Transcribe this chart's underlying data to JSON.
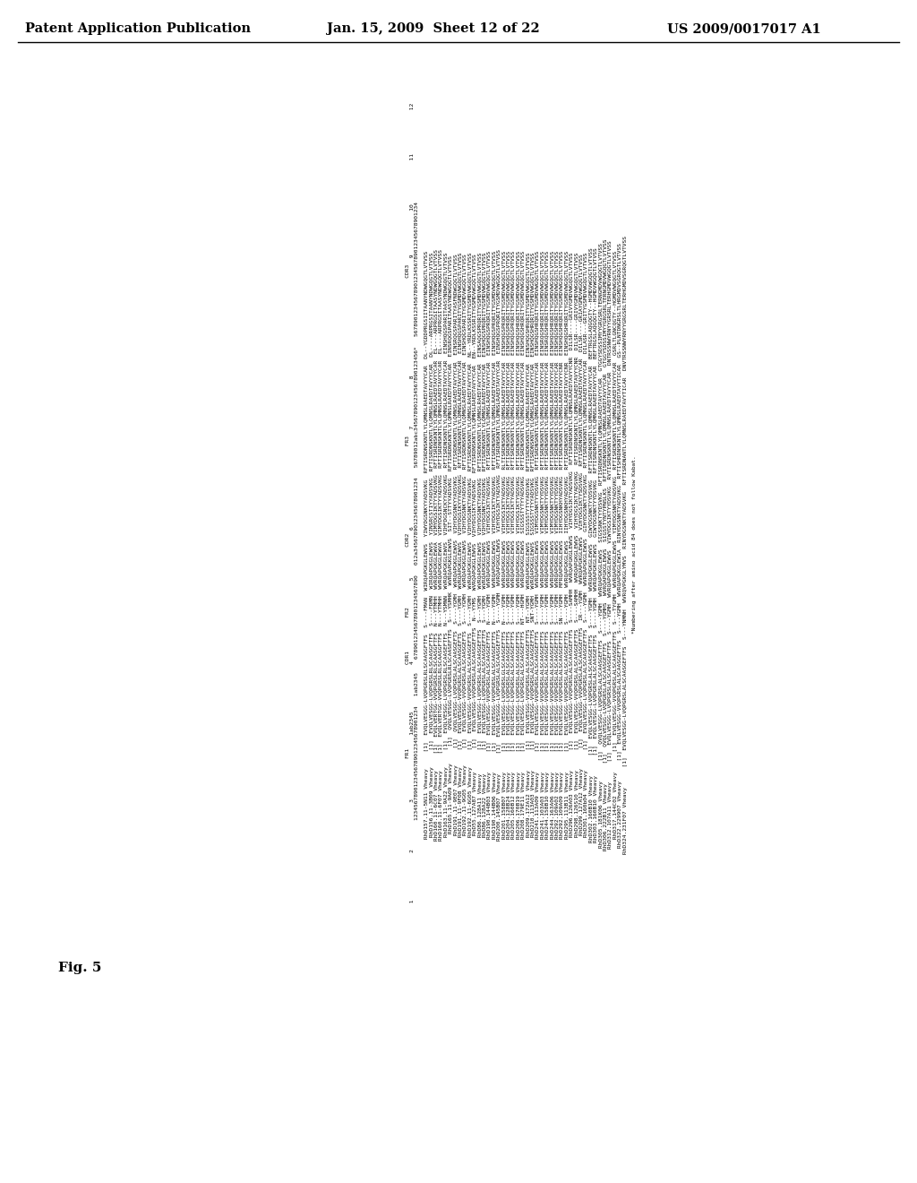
{
  "header_left": "Patent Application Publication",
  "header_center": "Jan. 15, 2009  Sheet 12 of 22",
  "header_right": "US 2009/0017017 A1",
  "figure_label": "Fig. 5",
  "background_color": "#ffffff",
  "text_color": "#000000",
  "footnote": "*Numbering after amino acid 84 does not follow Kabat.",
  "region_labels": [
    "FR1",
    "CDR1",
    "FR2",
    "CDR2",
    "FR3",
    "CDR3"
  ],
  "seq_names": [
    "RhD157.11-5N11 Vheavy",
    "RhD156.11-3B09 Vheavy",
    "RhD160.11-6C07 Vheavy",
    "RhD160.11-6F07 Vheavy",
    "RhD163.11-9A22 Vheavy",
    "RhD165.11-9A09 Vheavy",
    "RhD191.11-9E07 Vheavy",
    "RhD191.11-9F08 Vheavy",
    "RhD192.11-9G05 Vheavy",
    "RhD192.11-6G05 Vheavy",
    "RhD55.127A87 Vheavy",
    "RhD86.128A11 Vheavy",
    "RhD86.128A22 Vheavy",
    "RhD190.144B03 Vheavy",
    "RhD190.144B06 Vheavy",
    "RhD200.145B07 Vheavy",
    "RhD201.158B07 Vheavy",
    "RhD204.128B24 Vheavy",
    "RhD205.160B12 Vheavy",
    "RhD206.170B19 Vheavy",
    "RhD208.179E11 Vheavy",
    "RhD209.172A12 Vheavy",
    "RhD210.113A03 Vheavy",
    "RhD241.113A09 Vheavy",
    "RhD241.103A03 Vheavy",
    "RhD244.158B10 Vheavy",
    "RhD244.163A06 Vheavy",
    "RhD292.109A02 Vheavy",
    "RhD292.109A09 Vheavy",
    "RhD295.113B11 Vheavy",
    "RhD296.126A03 Vheavy",
    "RhD298.126S10 Vheavy",
    "RhD299.127A12 Vheavy",
    "RhD301.160b04 Vheavy",
    "RhD302.160B10 Vheavy",
    "RhD303.160B10 Vheavy",
    "RhD305.181K06 Vheavy",
    "RhD306.222B11 Vheavy",
    "RhD312.107A11 Vheavy",
    "RhD317.144C02 Vheavy",
    "RhD322.229907 Vheavy",
    "RhD324.231F07 Vheavy"
  ],
  "seq_label": "[1]",
  "fr1_data": [
    "EVQLVESGG-LVQPGRSLRLSCAASGFTFS",
    "EVQLVESGG-LVQPGRSLRLSCAASGFTFS",
    "EVQLVERTGG-VVQPGRSLRLSCAASGFTFS",
    "EVQLVERTGG-VVQPGRSLRLSCAASGFTFS",
    "EVQLVESGG-LVQPGRSLRLSCAASEFTFS",
    "QVQLVESGG-LVQPGRSLRLSCAASEFTFS",
    "QVQLVESGG-LVQPGRSLALSCAASGEFTS",
    "EVQLVESGG-VVQPGRSLALSCAASGEFTS",
    "EVQLVESGG-VVQPGRSLALSCAASGEFTS",
    "EVQLVESGG-VVQPGRSLALSCAASGEFTS",
    "EVQLVESGG-VVQPGRSLALSCAASGEFTFS",
    "EVQLVESGG-LVQPGRSLALSCAASGEFTFS",
    "EVQLVESGG-LVQPGRSLALSCAASGEFTFS",
    "EVQLVESGG-VVQPGRSLALSCAASGEFTFS",
    "EVQLVESGG-VVQPGRSLALSCAASGEFTFS",
    "EVQLVESGGG-LVQPGRSLALSCAASGEFTFS",
    "EVQLVESGG-LVQPGRSLGLSCAASGEFTFS",
    "EVQLVESGG-LVQPGRSLALSCAASGEFTFS",
    "EVQLVESGG-LVQPGRSLALSCAASGEFTFS",
    "EVQLVESGG-LVQPGRSLALSCAASGEFTFS",
    "EVQLVESGG-LVQPGRSLALSCAASGEFTFS",
    "EVQLVESGG-VVQPGRSLALSCAASGEFTFS",
    "EVQLVESGG-VVQPGRSLALSCAASGEFTFS",
    "EVQLVESGG-VVQPGRSLALSCAASGEFTFS",
    "EVQLVESGG-VVQPGRSLALSCAASGEFTFS",
    "EVQLVESGG-VVQPGRSLALSCAASGEFTFS",
    "EVQLVESGG-VVQPGRSLALSCAASGEFTFS",
    "EVQLVESGG-VVQPGRSLALSCAASGEFTFS",
    "EVQLVESGG-VVQPGRSLALSCAASGEFTFS",
    "EVQLVESGG-VVQPGRSLALSCAASGEFTFS",
    "EVQLVESGG-VVQPGRSLALSCAASGEFTFS",
    "EVQLVESGG-VVQPGRSLALSCAASGEFTFS",
    "EVQLVESGG-VVQPGRSLALSCAASGEFTFS",
    "EVQLVESGG-LVQPGRSLALSCAASGEFTFS",
    "EVQLVESGG-LVQPGRSLALSCAASGEFTFS",
    "EVQLVESGG-LVQPGRSLALSCAASGEFTFS",
    "QVQLVESGG-LVQPGRSLALSCAASGEFTFS",
    "QVQLVESGG-LVQPGRSLALSCAASGEFTFS",
    "EVQLVESGG-LVQPGRSLALSCAASGEFTFS",
    "EVQLVESGG-VVQPGRSLALSCAASGEFTFS",
    "EVQLVESGG-VVQPGRSLALSCAASGEFTFS",
    "EVQLVESGG-LVQPGRSLALSCAASGEFTFS"
  ],
  "cdr1_data": [
    "S----FMAN",
    "S----FDMN",
    "N---YTMHH",
    "N---YTMHH",
    "N---YSMNN",
    "S---YSMHK",
    "S----YGMH",
    "S----YGMH",
    "S----YGMH",
    "S----YGMH",
    "N--YYMS",
    "S---YGMH",
    "S---YGMH",
    "N----YGMH",
    "N----YGMH",
    "S----YGMH",
    "N----YGMH",
    "S----YGMH",
    "S----YGMH",
    "S----YGMH",
    "NT---HGMH",
    "NT--YGMH",
    "SNT-YGMH",
    "S----YGMH",
    "S----YGMH",
    "S----YGMH",
    "S----YGMH",
    "S----YGMH",
    "SN---YGMH",
    "S----YGMH",
    "S----SAMHH",
    "S----SAMHH",
    "IR---YGMH",
    "S----YGMH",
    "S----YGMH",
    "S----YGMH",
    "S----YGMH",
    "S----YGMHS",
    "S----YGMH",
    "S---TYGMH",
    "S----YGMH",
    "S---YNMNH"
  ],
  "fr2_data": [
    "WIRQAPGKGLEWVS",
    "WIRQAPGKGLEWVS",
    "WVRQAPGKGLEWVA",
    "WVRQAPGKGLEWVA",
    "WVRQAPGKGLEWVS",
    "WVRQAPGKGLEWVS",
    "WVRQAPGKGLEWVS",
    "WVRQAPGKGLEWVS",
    "WVRQAPGKGLEWVS",
    "WVRQAPGKGLEWVS",
    "WVRQAPGKGLEWVS",
    "WVRQAPGKGLEWVS",
    "WVRQAPGKGLEWVS",
    "WVRQAPGKGLEWVS",
    "WVRQAPGKGLEWVS",
    "WVRQAPGKGLEWVS",
    "WVROAPGKGLEWVS",
    "WVRQAPGKGLEWVS",
    "WVRQAPGKGLEWVS",
    "WVRQAPGKGLEWVS",
    "WVRQAPGKGLEWVS",
    "WVRQAPGKGLEWVS",
    "WVRQAPGKGLEWVS",
    "WVRQAPGKGLEWVS",
    "WVRQAPGKGLEWVS",
    "WVRQAPGKGLEWVS",
    "WVRQAPGKGLEWVS",
    "WVRQAPGKGLEWVS",
    "MFRQAPGKGLEWVS",
    "WVRQAPGKGLEWVS",
    "WVRQAPGKGLEWVS",
    "WVRQAPGKGLEWVS",
    "WVRQAPGKGLEWVS",
    "WVRQAPGKGLEWVS",
    "WVRQAPGKGLEWVS",
    "WVRQAPGKGLEWVS",
    "WVRQAPGKGLEWVS",
    "WVRQAPGKGLEWVS",
    "WVRQAPGKGLEWVS",
    "WVRQAPGKGLEWVS",
    "WVRQAPGKGLEWIA",
    "WVRQVPGKGLYMVS"
  ],
  "cdr2_data": [
    "YIWYDGSNKYYADSVKG",
    "YINSRCSTIYYADSVKG",
    "VIMYDGSIKTYYADSVKG",
    "VIMYDGSIKTYYADSVKG",
    "VIHFDGSNCKYYADSVKG",
    "SIT--STTYYADSVKG",
    "VIHYDGSNKYYADSVKG",
    "VIHYDGSIKYYYADSVKG",
    "VIHYDGSNKTYADSVKG",
    "VIHYDGSNKTYADSVKG",
    "VIHYDGSIKTYADSVKG",
    "VIHYDGSNKTYADSVKG",
    "VIHYDGSNKTYADSVKG",
    "VIHYDGSIKTYADSVKG",
    "VIHYDGSIKTYADSVKG",
    "VIHYDGSIKTYADSVKG",
    "VIHYDGSIKTYADSVKG",
    "VIHYDGSIKTYADSVKG",
    "VIHYDGSIKTYADSVKG",
    "VIHYDGSIKTYSDSVKG",
    "SIGSSSTYTYYADSVKG",
    "SIGSSSTYTYYADSVKG",
    "SIGSSSTYTYYADSVKG",
    "VIMYDGSNKTYYDSVKG",
    "VIMYDGSNKTYYDSVKG",
    "VIMYDGSNKTYYDSVKG",
    "VIMYDGSNKTYYDSVKG",
    "VIMYDGSNKTYYDSVKG",
    "IIHYDGSNKHYADSVKG",
    "IIHYDGSNKHYADSVKG",
    "VIHYDGSIKTYADSVKG",
    "VIHYDGSIKTYADSVKG",
    "VIHYDGSIKTYSDSVKG",
    "GIHYDGSNKTYSDSVKG",
    "GIWYDGSNKTYYDSVKG",
    "GIWYDGSNKTYYDSVKG",
    "SIGSSNKTYYDSVKG",
    "SIGSSTYNTYPNSLKS",
    "VIWYDGSIKTYYDSVKG",
    "YIMYDGSNKTYADSVKG",
    "RINYDGSNKTYADSVKG",
    "RINYDGSNKTYADSVKG"
  ],
  "fr3_data": [
    "RFTISRDNSKNTLYLQMNSLRAEDTAVYYCAR",
    "RFTISRDNSKNTLYLQMNSLRAEDTAVYYCAR",
    "RFTISRDNSKNTLYLQMNSLRAEDTAVYYCAR",
    "RFTISRDNSKNTLYLQMNSLRAEDTAVYYCAR",
    "RFTISRDNSKNTLYLQMNSLRAEDTAVYYCAR",
    "RFTISRDNSKNTLYLQMNSLRAEDTAVYYCAR",
    "RFTISRDNSKNTLYLQMNSLRAEDTAVYYCAR",
    "RFTISRDNSKNTLYLQMNSLRAEDTAVYYCAR",
    "RFTISRDNSKNTLYLQMNSLRAEDTAVYYCAR",
    "RFTISRDNSKNTLYLQMNSLRAEDTAVYYCAR",
    "RFTISRDNSKNTLYLQMNSLRAEDTAVYYCAR",
    "RFTISRDNSKNTLYLQMNSLRAEDTAVYYCAR",
    "RFTISRDNSKNTLYLQMNSLRAEDTAVYYCAR",
    "RFTISRDNSKNTLYLQMNSLRAEDTAVYYCAR",
    "RFTISRDNSKNTLYLQMNSLRAEDTAVYYCAR",
    "RFTISRDNSKNTLYLQMNSLRAEDTAVYYCAR",
    "RLTISRDNSKNTLYLQMNSLRAEDTAVYYCAR",
    "RFTISRDNSKNTLYLQMNSLRAEDTAVYYCAR",
    "RFTISRDNSKNTLYLQMNSLRAEDTAVYYCAR",
    "RFTISRDNSKNTLYLQMNSLRAEDTAVYYCAR",
    "RFTISRDNSKNTLYLQMNSLRAEDTAVYYCAR",
    "RFTISRDNSKNTLYLQMNSLRAEDTAVYYCAR",
    "RFTISRDNSKNTLYLQMNSLRAEDTAVYYCAR",
    "RFTISRDNSKNTLYLQMNSLRAEDTAVYYCAR",
    "RFTISRDNSKNTLYLQMNSLRAEDTAVYYCAR",
    "RFTISRDNSKNTLYLQMNSLRAEDTAVYYCAR",
    "RFTISRDNSKNTLYLQMNSLRAEDTAVYYCAR",
    "RFTISRDNSKNTLYLQMNSLRAEDTAVYYCAR",
    "RFTISRDNSKNTLYLQMNSLRAEDTAVYYCNR",
    "RFTISRDNSKNTLYLQMNSLRAEDTAVYYCNR",
    "RFTISRDNSKNTLYLQMNSLRAEDTAVYYCNR",
    "RFTISRDNSKNTLYLQMNSLRAEDTAVYYCNR",
    "RFTISRDNSKNTLYLQMNSLRAEDTAVYYCAR",
    "RFTISRDNSKNTLYLQMNSLRAEDTAVYYCAR",
    "RFTISRDNSKNTLYLQMNSLRAEDTAVYYCAR",
    "RFTISRDNSKNTLYLQMNSLRAEDTAVYYCAR",
    "RFTISRDNSKNTLYLQMNSLRAEDTAVYYCAR",
    "RFTISRDNSKNTLYLQMNSLRAEDTAVYYCAR",
    "RVTISRDNSKNTLYLQMNSLRAEDTAVYYCAR",
    "RFTISRDNSKNTLYLQMNSLRAEDTAVYYCAR",
    "RFTISHRDNSKNTLYLQMNSLRAEDTAVYTICAR",
    "RFTISRDNANTLYLQMNSLRAEDTAVYTICAR"
  ],
  "cdr3_data": [
    "DL--YGDDPRGSIITAANYNDWGQGTLVTVSS",
    "DL----ARPRGSITAANYNDWGQGTLVTVSS",
    "EL----ARPRGSITAASYNDWGQGTLVTVSS",
    "EL----ARPRGSITAASYNDWGQGTLVTVSS",
    "EINSHQGSPARITAASYNDWGQGTLVTVSS",
    "EINSRQGSPARITAASYNDWGQGTLVTVSS",
    "EINSRQGSPARITYASFNDWGQGTLVTVSS",
    "EINSHQGSPARITYGSMDVWGQGTLVTVSS",
    "EINSHQGSPARITYGSMDVWGQGTLVTVSS",
    "NL--YRDLKSSRITYGSMDVWGQGTLVTVSS",
    "EN--YRDLKSSRITYGSMDVWGQGTLVTVSS",
    "EINSAQGSPRQRITYGSMDVWGQGTLVTVSS",
    "EINSHQGSPRQRITYGSMDVWGQGTLVTVSS",
    "EINSHQGSPRQRITYGSMDVWGQGTLVTVSS",
    "EINSHQGSPRQRITYGSMDVWGQGTLVTVSS",
    "EINSHQGSPRQRITYGSMDVWGQGTLVTVSS",
    "EINSHQGSPRQRITYGSMDVWGQGTLVTVSS",
    "EINSHQGSPRQRITYGSMDVWGQGTLVTVSS",
    "EINSHQGSPRQRITYGSMDVWGQGTLVTVSS",
    "EINSHQGSHRQRITYGSMDVWGQGTLVTVSS",
    "EINSHQGSHRQRITYGSMDVWGQGTLVTVSS",
    "EINSHQGSHRQRITYGSMDVWGQGTLVTVSS",
    "EINSHQGSHRQRITYGSMDVWGQGTLVTVSS",
    "EINSHQGSHRQRITYGSMDVWGQGTLVTVSS",
    "EINSRQGSHRQRITYGSMDVWGQGTLVTVSS",
    "EINSRQGSHRQRITYGSMDVWGQGTLVTVSS",
    "EINSHQGSHRQRITYGSMDVWGQGTLVTVSS",
    "EINSHQGSHRQRITYGSMDVWGQGTLVTVSS",
    "EINSHQGSHRQRITYGSMDVWGQGTLVTVSS",
    "EINSHQGSHRQRITYGSMDVWGQGTLVTVSS",
    "DILSR----GRIVYGMDVWGQGTLVTVSS",
    "DILSR----GRIVYGMDVWGQGTLVTVSS",
    "DILSR----GRIAYGMDVWGQGTLVTVSS",
    "DILASR---GRITYGSMDVWGQGTLVTVSS",
    "BEFTRGSLAQGQGTY--HGMDVWGQGTLVTVSS",
    "BEFTRGSLAQGQGTY--HGMDVWGQGTLVTVSS",
    "GTGGYSDSSIMYYGRGSRLTERNGMDVWGQGTLVTVSS",
    "GTGGYSDSSIMYYGRGSRLTERNGMDVWGQGTLVTVSS",
    "DNTRSSNWYRNYYGRSRLTERHGMDVWGQGTLVTVSS",
    "GSRLTLGNCQGTY--HGMDVWGQGTLVTVSS",
    "GS--PLNTDNGRSLTLHRGMDVSGRQGTLVTVSS",
    "DNVTRSSNWYRNYYGRGSRLTERHGMDVSGRQGTLVTVSS"
  ]
}
